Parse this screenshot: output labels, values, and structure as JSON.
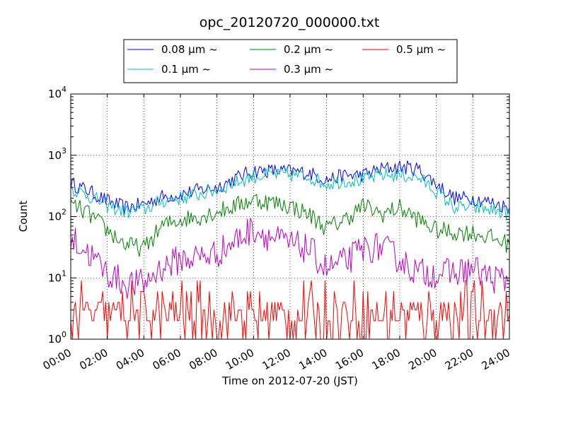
{
  "chart_data": {
    "type": "line",
    "title": "opc_20120720_000000.txt",
    "xlabel": "Time on 2012-07-20 (JST)",
    "ylabel": "Count",
    "yscale": "log",
    "ylim": [
      1,
      10000
    ],
    "xlim": [
      "00:00",
      "24:00"
    ],
    "grid": true,
    "legend_position": "top",
    "x_ticks": [
      "00:00",
      "02:00",
      "04:00",
      "06:00",
      "08:00",
      "10:00",
      "12:00",
      "14:00",
      "16:00",
      "18:00",
      "20:00",
      "22:00",
      "24:00"
    ],
    "y_ticks": [
      {
        "base": "10",
        "exp": "0"
      },
      {
        "base": "10",
        "exp": "1"
      },
      {
        "base": "10",
        "exp": "2"
      },
      {
        "base": "10",
        "exp": "3"
      },
      {
        "base": "10",
        "exp": "4"
      }
    ],
    "x_hours": [
      0,
      1,
      2,
      3,
      4,
      5,
      6,
      7,
      8,
      9,
      10,
      11,
      12,
      13,
      14,
      15,
      16,
      17,
      18,
      19,
      20,
      21,
      22,
      23,
      24
    ],
    "series": [
      {
        "name": "0.08 μm ~",
        "color": "#0000ff",
        "values": [
          350,
          260,
          180,
          140,
          160,
          210,
          230,
          270,
          300,
          420,
          560,
          560,
          550,
          520,
          400,
          470,
          480,
          600,
          650,
          600,
          340,
          200,
          200,
          170,
          140
        ]
      },
      {
        "name": "0.1 μm ~",
        "color": "#00bfbf",
        "values": [
          290,
          220,
          150,
          120,
          130,
          180,
          200,
          230,
          270,
          360,
          450,
          480,
          480,
          450,
          340,
          390,
          390,
          480,
          470,
          440,
          260,
          140,
          140,
          130,
          110
        ]
      },
      {
        "name": "0.2 μm ~",
        "color": "#008000",
        "values": [
          160,
          110,
          60,
          35,
          30,
          70,
          90,
          100,
          120,
          150,
          190,
          170,
          150,
          110,
          65,
          90,
          150,
          110,
          140,
          90,
          60,
          55,
          55,
          45,
          35
        ]
      },
      {
        "name": "0.3 μm ~",
        "color": "#bf00bf",
        "values": [
          45,
          25,
          12,
          8,
          8,
          15,
          20,
          22,
          25,
          40,
          65,
          45,
          35,
          30,
          14,
          18,
          30,
          32,
          20,
          12,
          12,
          12,
          14,
          10,
          9
        ]
      },
      {
        "name": "0.5 μm ~",
        "color": "#ff0000",
        "values": [
          3,
          3,
          3,
          2.5,
          2.5,
          3,
          3,
          3,
          3,
          3.5,
          4,
          3.5,
          3.5,
          3,
          2.5,
          3,
          3,
          3,
          3,
          2.5,
          2.5,
          2.5,
          2.5,
          2.5,
          2.5
        ]
      }
    ]
  }
}
